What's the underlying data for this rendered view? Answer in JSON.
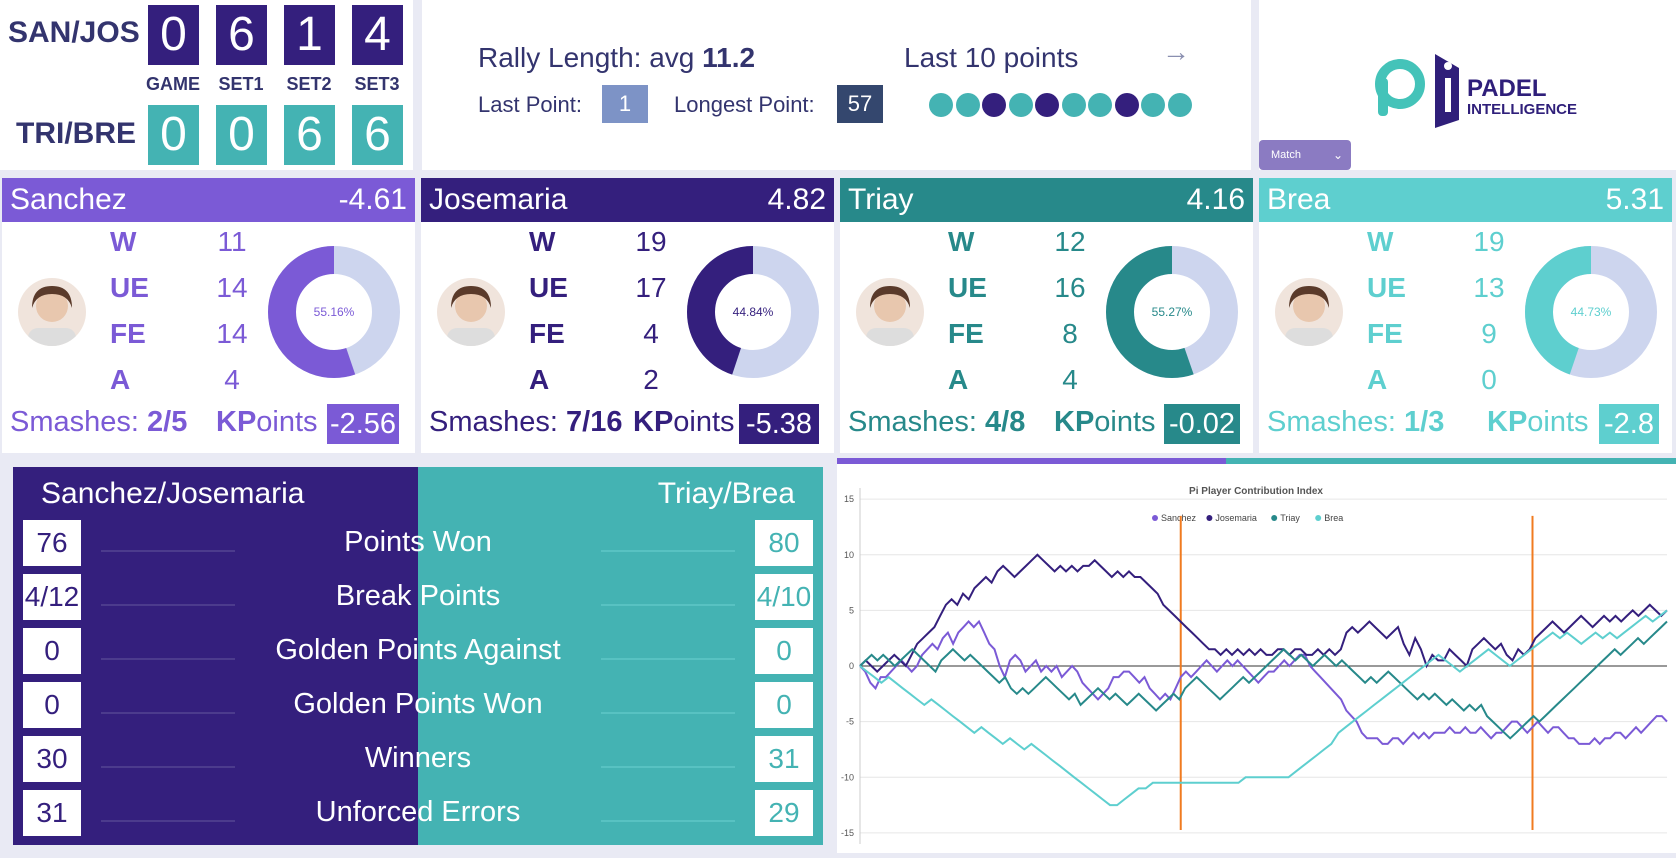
{
  "scoreboard": {
    "team1": "SAN/JOS",
    "team2": "TRI/BRE",
    "labels": [
      "GAME",
      "SET1",
      "SET2",
      "SET3"
    ],
    "team1_scores": [
      "0",
      "6",
      "1",
      "4"
    ],
    "team2_scores": [
      "0",
      "0",
      "6",
      "6"
    ]
  },
  "rally": {
    "avg_label": "Rally Length: avg",
    "avg_value": "11.2",
    "last_point_label": "Last Point:",
    "last_point_value": "1",
    "longest_label": "Longest Point:",
    "longest_value": "57",
    "last10_label": "Last 10 points",
    "arrow": "→",
    "last10": [
      "team2",
      "team2",
      "team1",
      "team2",
      "team1",
      "team2",
      "team2",
      "team1",
      "team2",
      "team2"
    ]
  },
  "logo": {
    "brand_line1": "PADEL",
    "brand_line2": "INTELLIGENCE",
    "brand_prefix": ".",
    "dropdown_value": "Match"
  },
  "colors": {
    "sanchez": "#7b5ad6",
    "josemaria": "#341f7d",
    "triay": "#27898a",
    "brea": "#5ecfcf",
    "team1": "#341f7d",
    "team2": "#44b3b3",
    "donut_bg": "#cdd5ee",
    "set_marker": "#f07b20"
  },
  "players": [
    {
      "name": "Sanchez",
      "score": "-4.61",
      "W": "11",
      "UE": "14",
      "FE": "14",
      "A": "4",
      "pct": "55.16%",
      "smash_label": "Smashes:",
      "smash": "2/5",
      "kp_bold": "KP",
      "kp_rest": "oints",
      "kp": "-2.56"
    },
    {
      "name": "Josemaria",
      "score": "4.82",
      "W": "19",
      "UE": "17",
      "FE": "4",
      "A": "2",
      "pct": "44.84%",
      "smash_label": "Smashes:",
      "smash": "7/16",
      "kp_bold": "KP",
      "kp_rest": "oints",
      "kp": "-5.38"
    },
    {
      "name": "Triay",
      "score": "4.16",
      "W": "12",
      "UE": "16",
      "FE": "8",
      "A": "4",
      "pct": "55.27%",
      "smash_label": "Smashes:",
      "smash": "4/8",
      "kp_bold": "KP",
      "kp_rest": "oints",
      "kp": "-0.02"
    },
    {
      "name": "Brea",
      "score": "5.31",
      "W": "19",
      "UE": "13",
      "FE": "9",
      "A": "0",
      "pct": "44.73%",
      "smash_label": "Smashes:",
      "smash": "1/3",
      "kp_bold": "KP",
      "kp_rest": "oints",
      "kp": "-2.8"
    }
  ],
  "stat_labels": [
    "W",
    "UE",
    "FE",
    "A"
  ],
  "compare": {
    "team1": "Sanchez/Josemaria",
    "team2": "Triay/Brea",
    "rows": [
      {
        "label": "Points Won",
        "t1": "76",
        "t2": "80"
      },
      {
        "label": "Break Points",
        "t1": "4/12",
        "t2": "4/10"
      },
      {
        "label": "Golden Points Against",
        "t1": "0",
        "t2": "0"
      },
      {
        "label": "Golden Points Won",
        "t1": "0",
        "t2": "0"
      },
      {
        "label": "Winners",
        "t1": "30",
        "t2": "31"
      },
      {
        "label": "Unforced Errors",
        "t1": "31",
        "t2": "29"
      }
    ]
  },
  "chart_data": {
    "type": "line",
    "title": "Pi Player Contribution Index",
    "legend_position": "top-center",
    "grid": true,
    "ylim": [
      -16,
      16
    ],
    "yticks": [
      15,
      10,
      5,
      0,
      -5,
      -10,
      -15
    ],
    "set_boundaries_at_point": [
      62,
      130
    ],
    "series": [
      {
        "name": "Sanchez",
        "values": [
          0,
          -0.5,
          -1.5,
          -2,
          -1,
          -1,
          -0.5,
          0,
          0.5,
          0,
          -0.5,
          0,
          1,
          1.5,
          2,
          1.5,
          2.5,
          3,
          2,
          3,
          3.5,
          4,
          3.5,
          4,
          3,
          2,
          1.5,
          0,
          -1,
          0.5,
          1,
          0.5,
          -0.5,
          0,
          0.5,
          -0.5,
          0,
          -0.5,
          0,
          -1,
          -0.5,
          0,
          -0.5,
          -1.5,
          -2,
          -2.5,
          -3,
          -2.5,
          -2,
          -1,
          -1,
          -0.5,
          -0.5,
          -1,
          -1.5,
          -1,
          -2,
          -2.5,
          -3,
          -2.5,
          -3,
          -2,
          -1,
          -0.5,
          -1,
          -0.5,
          0,
          0.5,
          0,
          -0.5,
          0,
          0.5,
          0,
          0.5,
          0,
          -0.5,
          -1,
          -1.5,
          -1,
          -0.5,
          -0.5,
          0,
          0.5,
          0,
          0.5,
          1,
          1,
          0,
          -0.5,
          -1,
          -1.5,
          -2,
          -2.5,
          -3,
          -4,
          -4.5,
          -5,
          -6,
          -6.5,
          -6.5,
          -6.5,
          -7,
          -7,
          -6.5,
          -6.5,
          -7,
          -6.5,
          -6,
          -6.5,
          -6,
          -6.5,
          -6,
          -6,
          -6,
          -5.5,
          -6,
          -6,
          -5.5,
          -6,
          -6,
          -5.5,
          -6,
          -6.5,
          -6,
          -6,
          -5.5,
          -5,
          -5,
          -5.5,
          -6,
          -5.5,
          -5,
          -5.5,
          -6,
          -5.5,
          -5.5,
          -6,
          -6.5,
          -6.5,
          -7,
          -7,
          -7,
          -6.5,
          -7,
          -6.5,
          -6.5,
          -6,
          -6,
          -6.5,
          -6,
          -5.5,
          -6,
          -5.5,
          -5,
          -4.5,
          -4.5,
          -5
        ]
      },
      {
        "name": "Josemaria",
        "values": [
          0,
          0.5,
          0,
          -0.5,
          0,
          0.5,
          1,
          0.5,
          0,
          1,
          2,
          2.5,
          3,
          3.5,
          4.5,
          5.5,
          6,
          5.5,
          6.5,
          6,
          7,
          7.5,
          8,
          7.5,
          8.5,
          9,
          8.5,
          8,
          8.5,
          9,
          9.5,
          10,
          9.5,
          9,
          8.5,
          9,
          8.5,
          9,
          8.5,
          9,
          9,
          9.5,
          9,
          8.5,
          8,
          8.5,
          8,
          8.5,
          8,
          8,
          7.5,
          7,
          6.5,
          5.5,
          5,
          4.5,
          4,
          3.5,
          3,
          2.5,
          2,
          1.5,
          1.5,
          1,
          1.5,
          1,
          1.5,
          1,
          1.5,
          1,
          1.5,
          1,
          1,
          1.5,
          1.5,
          1,
          1.5,
          1.5,
          1,
          1,
          1.5,
          1,
          1.5,
          1,
          1.5,
          3,
          3.5,
          3,
          3.5,
          4,
          3.5,
          3,
          2.5,
          3,
          3.5,
          2,
          1,
          2.5,
          1.5,
          0,
          1,
          0.5,
          0.5,
          1.5,
          1,
          0.5,
          0,
          1.5,
          2,
          2.5,
          2,
          1.5,
          2,
          1,
          0.5,
          1.5,
          1,
          1.5,
          2.5,
          3,
          3.5,
          4,
          3.5,
          3,
          3.5,
          4,
          4.5,
          4,
          3.5,
          4,
          4.5,
          4,
          4.5,
          4,
          4.5,
          5,
          4.5,
          5,
          5.5,
          5,
          4.5,
          5
        ]
      },
      {
        "name": "Triay",
        "values": [
          0,
          0.5,
          1,
          0.5,
          1,
          0.5,
          0,
          0.5,
          1,
          1.5,
          1,
          0.5,
          0,
          -0.5,
          0.5,
          1,
          1.5,
          1,
          0.5,
          1,
          0.5,
          0,
          -0.5,
          -1,
          -1.5,
          -1,
          -2,
          -2.5,
          -2,
          -2.5,
          -2,
          -1.5,
          -1,
          -1.5,
          -2,
          -2.5,
          -3,
          -2.5,
          -3.5,
          -3,
          -2.5,
          -2,
          -2.5,
          -3,
          -2.5,
          -3,
          -3.5,
          -3,
          -2.5,
          -3,
          -3.5,
          -4,
          -3.5,
          -3,
          -2.5,
          -3,
          -2,
          -1.5,
          -1,
          -1.5,
          -2,
          -2.5,
          -3,
          -2.5,
          -2,
          -1.5,
          -1,
          -1.5,
          -1,
          -0.5,
          0,
          0.5,
          1,
          1.5,
          1,
          0.5,
          1,
          0.5,
          0,
          0.5,
          1,
          0.5,
          0,
          0.5,
          0,
          -0.5,
          -1,
          -1.5,
          -1,
          -1.5,
          -1,
          -0.5,
          -1,
          -1.5,
          -2,
          -2.5,
          -3,
          -2.5,
          -3,
          -2.5,
          -3,
          -3.5,
          -3,
          -3.5,
          -4,
          -3.5,
          -4,
          -3.5,
          -4.5,
          -5,
          -5.5,
          -6,
          -6.5,
          -6,
          -5.5,
          -5,
          -4.5,
          -5,
          -4.5,
          -4,
          -3.5,
          -3,
          -2.5,
          -2,
          -1.5,
          -1,
          -0.5,
          0,
          0.5,
          1,
          1.5,
          1,
          1.5,
          2,
          2.5,
          2,
          2.5,
          3,
          3.5,
          4
        ]
      },
      {
        "name": "Brea",
        "values": [
          0,
          -0.5,
          -1,
          -1.5,
          -1,
          -1.5,
          -2,
          -2.5,
          -3,
          -3.5,
          -3,
          -3.5,
          -4,
          -4.5,
          -5,
          -5.5,
          -6,
          -5.5,
          -6,
          -6.5,
          -7,
          -6.5,
          -7,
          -7.5,
          -7,
          -7.5,
          -8,
          -8.5,
          -9,
          -9.5,
          -10,
          -10.5,
          -11,
          -11.5,
          -12,
          -12.5,
          -12.5,
          -12,
          -11.5,
          -11,
          -11,
          -10.5,
          -10.5,
          -10.5,
          -10.5,
          -10.5,
          -10.5,
          -10.5,
          -10.5,
          -10.5,
          -10.5,
          -10.5,
          -10.5,
          -10.5,
          -10,
          -10,
          -10,
          -10,
          -10,
          -10,
          -10,
          -9.5,
          -9,
          -8.5,
          -8,
          -7.5,
          -7,
          -6,
          -5.5,
          -5,
          -4.5,
          -4,
          -3.5,
          -3,
          -2.5,
          -2,
          -1.5,
          -1,
          -0.5,
          0,
          0.5,
          1,
          0.5,
          0,
          -0.5,
          0,
          0.5,
          1,
          1.5,
          1,
          0.5,
          0,
          0.5,
          1,
          1.5,
          2,
          2.5,
          3,
          2.5,
          3,
          2.5,
          2,
          2.5,
          3,
          2.5,
          3,
          2.5,
          3,
          3.5,
          4,
          4.5,
          4,
          4.5,
          5
        ]
      }
    ]
  }
}
